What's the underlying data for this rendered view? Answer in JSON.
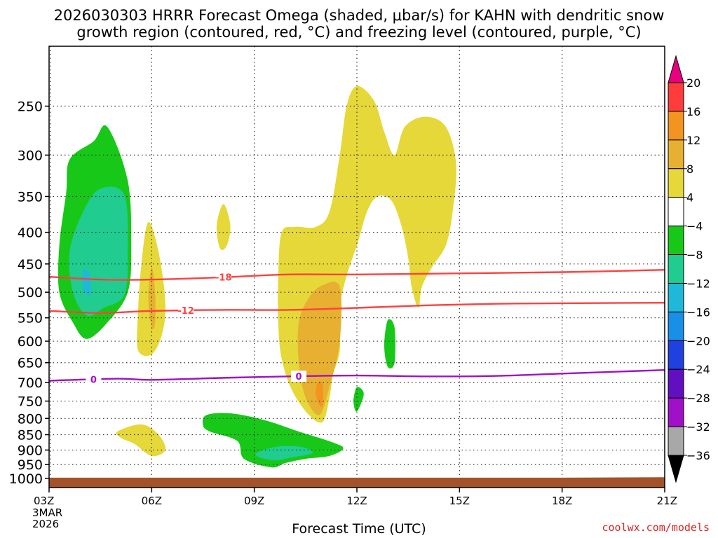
{
  "header": {
    "title_line1": "2026030303 HRRR Forecast Omega (shaded, μbar/s) for KAHN with dendritic snow",
    "title_line2": "growth region (contoured, red, °C) and freezing level (contoured, purple, °C)"
  },
  "footer": {
    "credit": "coolwx.com/models",
    "start_day": "3MAR",
    "start_year": "2026"
  },
  "chart_data": {
    "type": "contour",
    "xlabel": "Forecast Time (UTC)",
    "ylabel": "",
    "x_ticks": [
      {
        "hour": 0,
        "label": "03Z"
      },
      {
        "hour": 3,
        "label": "06Z"
      },
      {
        "hour": 6,
        "label": "09Z"
      },
      {
        "hour": 9,
        "label": "12Z"
      },
      {
        "hour": 12,
        "label": "15Z"
      },
      {
        "hour": 15,
        "label": "18Z"
      },
      {
        "hour": 18,
        "label": "21Z"
      }
    ],
    "xlim": [
      0,
      18
    ],
    "y_ticks": [
      250,
      300,
      350,
      400,
      450,
      500,
      550,
      600,
      650,
      700,
      750,
      800,
      850,
      900,
      950,
      1000
    ],
    "ylim_hpa": [
      1035,
      200
    ],
    "y_scale": "log-pressure",
    "grid": true,
    "colorbar": {
      "boundaries": [
        20,
        16,
        12,
        8,
        4,
        -4,
        -8,
        -12,
        -16,
        -20,
        -24,
        -28,
        -32,
        -36
      ],
      "colors": [
        "#e8007e",
        "#ff3c3c",
        "#f39320",
        "#e7b030",
        "#e6d838",
        "#ffffff",
        "#18c818",
        "#20cc90",
        "#20b8d8",
        "#1890e8",
        "#2040e0",
        "#6010c0",
        "#a010c8",
        "#a8a8a8",
        "#000000"
      ]
    },
    "contours": [
      {
        "label": "-18",
        "color": "#ff4040",
        "points": [
          [
            0,
            472
          ],
          [
            1.5,
            477
          ],
          [
            3,
            477
          ],
          [
            5,
            473
          ],
          [
            7,
            468
          ],
          [
            9,
            468
          ],
          [
            12,
            466
          ],
          [
            15,
            464
          ],
          [
            18,
            460
          ]
        ]
      },
      {
        "label": "-12",
        "color": "#ff4040",
        "points": [
          [
            0,
            536
          ],
          [
            1.5,
            540
          ],
          [
            3,
            536
          ],
          [
            5,
            534
          ],
          [
            7,
            534
          ],
          [
            9,
            530
          ],
          [
            11,
            525
          ],
          [
            13,
            522
          ],
          [
            15,
            521
          ],
          [
            18,
            520
          ]
        ]
      },
      {
        "label": "0",
        "color": "#a010c8",
        "points": [
          [
            0,
            695
          ],
          [
            2,
            690
          ],
          [
            3,
            693
          ],
          [
            5,
            688
          ],
          [
            7,
            684
          ],
          [
            9,
            682
          ],
          [
            11,
            684
          ],
          [
            13,
            683
          ],
          [
            15,
            677
          ],
          [
            18,
            668
          ]
        ]
      }
    ],
    "shaded_regions": [
      {
        "value": -6,
        "color": "#18c818",
        "points": [
          [
            0.6,
            305
          ],
          [
            1.3,
            285
          ],
          [
            1.7,
            270
          ],
          [
            2.3,
            330
          ],
          [
            2.4,
            420
          ],
          [
            2.3,
            500
          ],
          [
            1.7,
            560
          ],
          [
            1.1,
            595
          ],
          [
            0.7,
            560
          ],
          [
            0.3,
            500
          ],
          [
            0.3,
            420
          ],
          [
            0.5,
            345
          ]
        ]
      },
      {
        "value": -10,
        "color": "#20cc90",
        "points": [
          [
            1.0,
            370
          ],
          [
            1.5,
            340
          ],
          [
            2.2,
            348
          ],
          [
            2.3,
            430
          ],
          [
            2.2,
            505
          ],
          [
            1.6,
            530
          ],
          [
            1.1,
            545
          ],
          [
            0.7,
            500
          ],
          [
            0.6,
            430
          ]
        ]
      },
      {
        "value": -14,
        "color": "#20b8d8",
        "points": [
          [
            1.0,
            460
          ],
          [
            1.2,
            470
          ],
          [
            1.2,
            505
          ],
          [
            1.0,
            495
          ]
        ]
      },
      {
        "value": 6,
        "color": "#e6d838",
        "points": [
          [
            2.9,
            385
          ],
          [
            3.2,
            430
          ],
          [
            3.4,
            520
          ],
          [
            3.3,
            585
          ],
          [
            3.0,
            630
          ],
          [
            2.6,
            620
          ],
          [
            2.6,
            540
          ],
          [
            2.7,
            450
          ]
        ]
      },
      {
        "value": 10,
        "color": "#e7b030",
        "points": [
          [
            3.0,
            455
          ],
          [
            3.1,
            500
          ],
          [
            3.1,
            560
          ],
          [
            3.0,
            570
          ],
          [
            2.9,
            510
          ]
        ]
      },
      {
        "value": 6,
        "color": "#e6d838",
        "points": [
          [
            5.1,
            360
          ],
          [
            5.3,
            390
          ],
          [
            5.2,
            420
          ],
          [
            5.0,
            425
          ],
          [
            4.9,
            390
          ]
        ]
      },
      {
        "value": 6,
        "color": "#e6d838",
        "points": [
          [
            9.0,
            232
          ],
          [
            9.5,
            245
          ],
          [
            9.8,
            275
          ],
          [
            10.1,
            300
          ],
          [
            10.4,
            270
          ],
          [
            11.0,
            260
          ],
          [
            11.6,
            270
          ],
          [
            11.9,
            310
          ],
          [
            11.8,
            370
          ],
          [
            11.6,
            420
          ],
          [
            11.2,
            455
          ],
          [
            10.9,
            490
          ],
          [
            10.8,
            530
          ],
          [
            10.6,
            490
          ],
          [
            10.5,
            440
          ],
          [
            10.3,
            390
          ],
          [
            10.0,
            355
          ],
          [
            9.6,
            350
          ],
          [
            9.3,
            370
          ],
          [
            9.0,
            420
          ],
          [
            8.7,
            470
          ],
          [
            8.5,
            530
          ],
          [
            8.5,
            620
          ],
          [
            8.3,
            680
          ],
          [
            8.2,
            740
          ],
          [
            8.0,
            810
          ],
          [
            7.6,
            790
          ],
          [
            7.1,
            720
          ],
          [
            6.8,
            640
          ],
          [
            6.7,
            560
          ],
          [
            6.7,
            470
          ],
          [
            6.8,
            400
          ],
          [
            7.2,
            392
          ],
          [
            7.8,
            392
          ],
          [
            8.2,
            370
          ],
          [
            8.5,
            300
          ],
          [
            8.7,
            250
          ]
        ]
      },
      {
        "value": 10,
        "color": "#e7b030",
        "points": [
          [
            8.0,
            487
          ],
          [
            8.5,
            490
          ],
          [
            8.5,
            600
          ],
          [
            8.2,
            710
          ],
          [
            7.9,
            790
          ],
          [
            7.5,
            740
          ],
          [
            7.3,
            650
          ],
          [
            7.3,
            560
          ],
          [
            7.6,
            510
          ]
        ]
      },
      {
        "value": 14,
        "color": "#f39320",
        "points": [
          [
            7.85,
            700
          ],
          [
            8.0,
            705
          ],
          [
            8.0,
            760
          ],
          [
            7.9,
            760
          ],
          [
            7.8,
            730
          ]
        ]
      },
      {
        "value": -6,
        "color": "#18c818",
        "points": [
          [
            9.9,
            555
          ],
          [
            10.1,
            570
          ],
          [
            10.1,
            650
          ],
          [
            9.9,
            660
          ],
          [
            9.8,
            610
          ]
        ]
      },
      {
        "value": -6,
        "color": "#18c818",
        "points": [
          [
            9.0,
            712
          ],
          [
            9.2,
            730
          ],
          [
            9.0,
            780
          ],
          [
            8.9,
            750
          ]
        ]
      },
      {
        "value": 6,
        "color": "#e6d838",
        "points": [
          [
            2.0,
            840
          ],
          [
            2.7,
            818
          ],
          [
            3.2,
            850
          ],
          [
            3.4,
            900
          ],
          [
            3.0,
            920
          ],
          [
            2.5,
            880
          ],
          [
            2.1,
            860
          ]
        ]
      },
      {
        "value": -6,
        "color": "#18c818",
        "points": [
          [
            4.6,
            790
          ],
          [
            5.3,
            785
          ],
          [
            6.3,
            805
          ],
          [
            7.3,
            840
          ],
          [
            8.3,
            875
          ],
          [
            8.6,
            895
          ],
          [
            8.2,
            920
          ],
          [
            7.5,
            930
          ],
          [
            6.9,
            945
          ],
          [
            6.5,
            960
          ],
          [
            5.7,
            930
          ],
          [
            5.5,
            870
          ],
          [
            4.7,
            840
          ],
          [
            4.5,
            820
          ]
        ]
      },
      {
        "value": -10,
        "color": "#20cc90",
        "points": [
          [
            6.1,
            908
          ],
          [
            6.7,
            888
          ],
          [
            7.4,
            890
          ],
          [
            7.7,
            910
          ],
          [
            7.1,
            925
          ],
          [
            6.6,
            935
          ],
          [
            6.1,
            922
          ]
        ]
      }
    ]
  }
}
